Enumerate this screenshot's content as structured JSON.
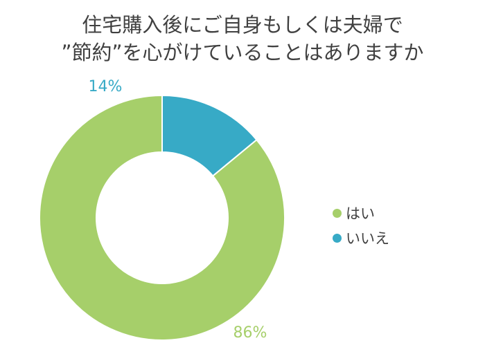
{
  "title_lines": [
    "住宅購入後にご自身もしくは夫婦で",
    "”節約”を心がけていることはありますか"
  ],
  "chart_data": {
    "type": "pie",
    "variant": "doughnut",
    "title": "住宅購入後にご自身もしくは夫婦で ”節約”を心がけていることはありますか",
    "categories": [
      "はい",
      "いいえ"
    ],
    "values": [
      86,
      14
    ],
    "data_labels": [
      "86%",
      "14%"
    ],
    "colors": [
      "#a6cf6a",
      "#37aac6"
    ],
    "label_colors": [
      "#a6cf6a",
      "#37aac6"
    ],
    "legend_position": "right"
  }
}
